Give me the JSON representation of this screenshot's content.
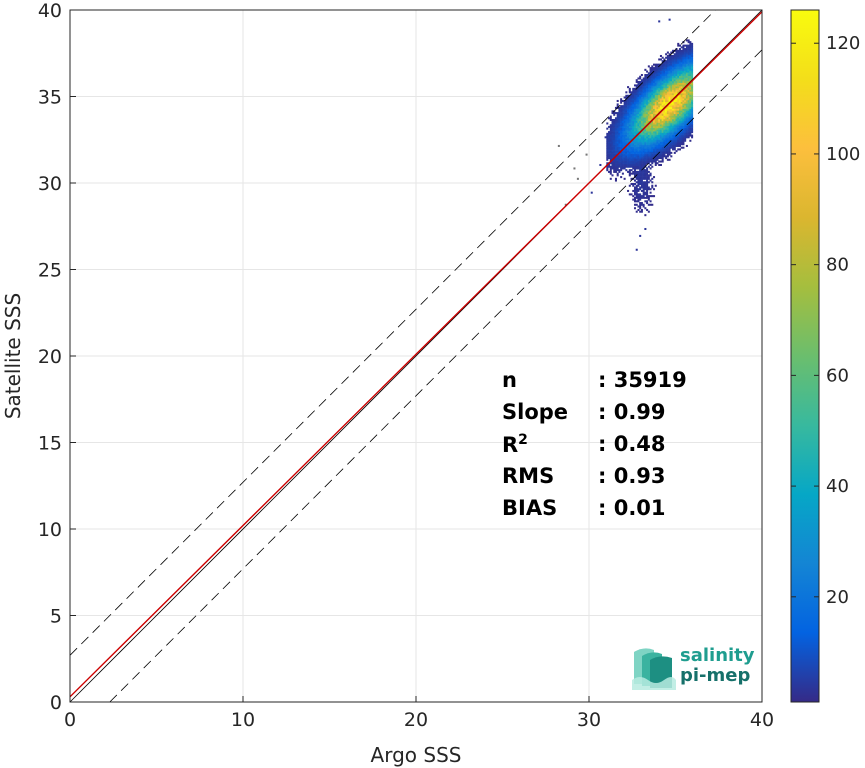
{
  "chart_data": {
    "type": "heatmap",
    "xlabel": "Argo SSS",
    "ylabel": "Satellite SSS",
    "xlim": [
      0,
      40
    ],
    "ylim": [
      0,
      40
    ],
    "xticks": [
      "0",
      "10",
      "20",
      "30",
      "40"
    ],
    "yticks": [
      "0",
      "5",
      "10",
      "15",
      "20",
      "25",
      "30",
      "35",
      "40"
    ],
    "grid": true,
    "colorbar": {
      "range": [
        1,
        126
      ],
      "ticks": [
        "20",
        "40",
        "60",
        "80",
        "100",
        "120"
      ],
      "colormap": "parula"
    },
    "density_cluster": {
      "x_range": [
        28.2,
        36
      ],
      "y_range": [
        26,
        39.6
      ],
      "peak": [
        34.6,
        34.5
      ],
      "max_count": 126
    },
    "lines": [
      {
        "name": "1:1",
        "color": "#000000",
        "style": "solid",
        "offset": 0
      },
      {
        "name": "fit",
        "color": "#cc0000",
        "style": "solid",
        "slope": 0.99,
        "intercept": 0.3
      },
      {
        "name": "+bound",
        "color": "#000000",
        "style": "dashed",
        "offset": 2.7
      },
      {
        "name": "-bound",
        "color": "#000000",
        "style": "dashed",
        "offset": -2.3
      }
    ],
    "stats": [
      {
        "label": "n",
        "value": ": 35919"
      },
      {
        "label": "Slope",
        "value": ": 0.99"
      },
      {
        "label": "R",
        "sup": "2",
        "value": ": 0.48"
      },
      {
        "label": "RMS",
        "value": ": 0.93"
      },
      {
        "label": "BIAS",
        "value": ": 0.01"
      }
    ]
  },
  "logo": {
    "line1": "salinity",
    "line2": "pi-mep",
    "color1": "#1f9d8f",
    "color2": "#16706a"
  }
}
